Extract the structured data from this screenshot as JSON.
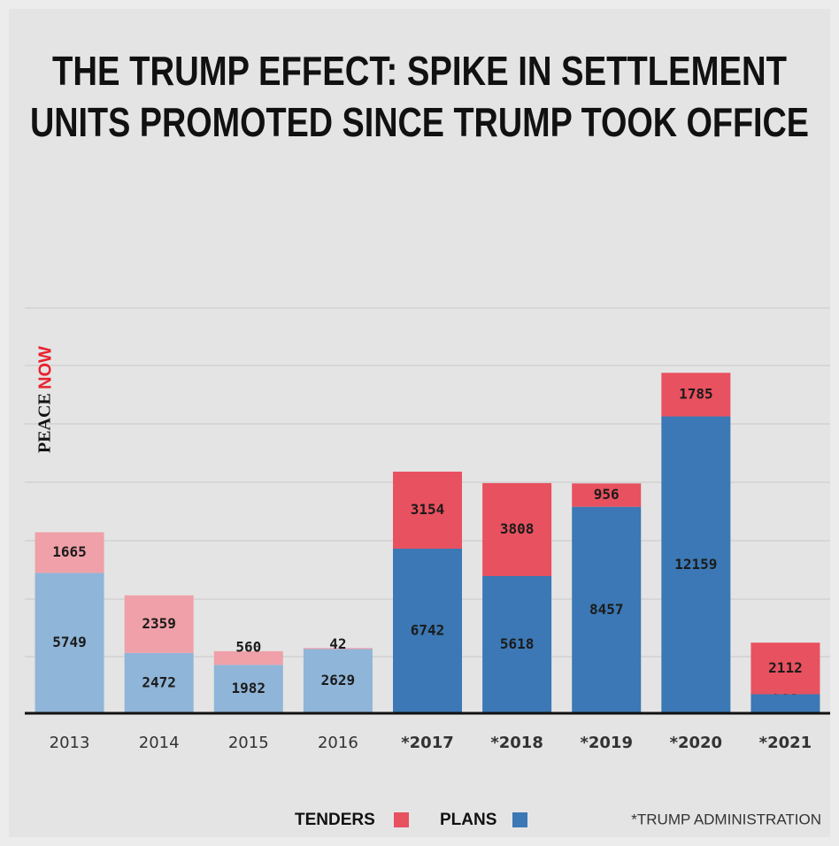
{
  "chart_data": {
    "type": "stacked_bar",
    "title": [
      "THE TRUMP EFFECT: SPIKE IN SETTLEMENT",
      "UNITS PROMOTED SINCE TRUMP TOOK OFFICE"
    ],
    "logo": [
      "PEACE",
      "NOW"
    ],
    "categories": [
      "2013",
      "2014",
      "2015",
      "2016",
      "*2017",
      "*2018",
      "*2019",
      "*2020",
      "*2021"
    ],
    "series": [
      {
        "name": "PLANS",
        "color": "#3b78b5",
        "colors": [
          "#8fb5d8",
          "#8fb5d8",
          "#8fb5d8",
          "#8fb5d8",
          "#3b78b5",
          "#3b78b5",
          "#3b78b5",
          "#3b78b5",
          "#3b78b5"
        ],
        "values": [
          5749,
          2472,
          1982,
          2629,
          6742,
          5618,
          8457,
          12159,
          780
        ]
      },
      {
        "name": "TENDERS",
        "color": "#e8515f",
        "colors": [
          "#f0a0a8",
          "#f0a0a8",
          "#f0a0a8",
          "#f0a0a8",
          "#e8515f",
          "#e8515f",
          "#e8515f",
          "#e8515f",
          "#e8515f"
        ],
        "values": [
          1665,
          2359,
          560,
          42,
          3154,
          3808,
          956,
          1785,
          2112
        ]
      }
    ],
    "ylim": [
      0,
      16600
    ],
    "footnote": "*TRUMP ADMINISTRATION"
  }
}
